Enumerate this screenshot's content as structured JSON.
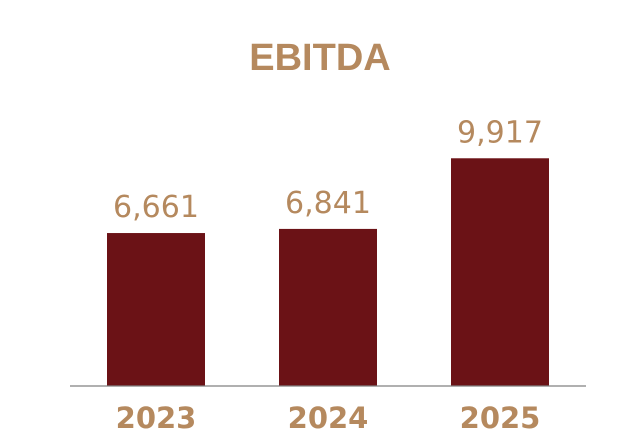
{
  "chart_data": {
    "type": "bar",
    "title": "EBITDA",
    "categories": [
      "2023",
      "2024",
      "2025"
    ],
    "values": [
      6661,
      6841,
      9917
    ],
    "data_labels": [
      "6,661",
      "6,841",
      "9,917"
    ],
    "ylim": [
      0,
      13500
    ],
    "grid": false,
    "legend": "none",
    "xlabel": "",
    "ylabel": ""
  },
  "colors": {
    "bar": "#6b1216",
    "text": "#b5895e",
    "axis": "#808080",
    "background": "#ffffff"
  }
}
